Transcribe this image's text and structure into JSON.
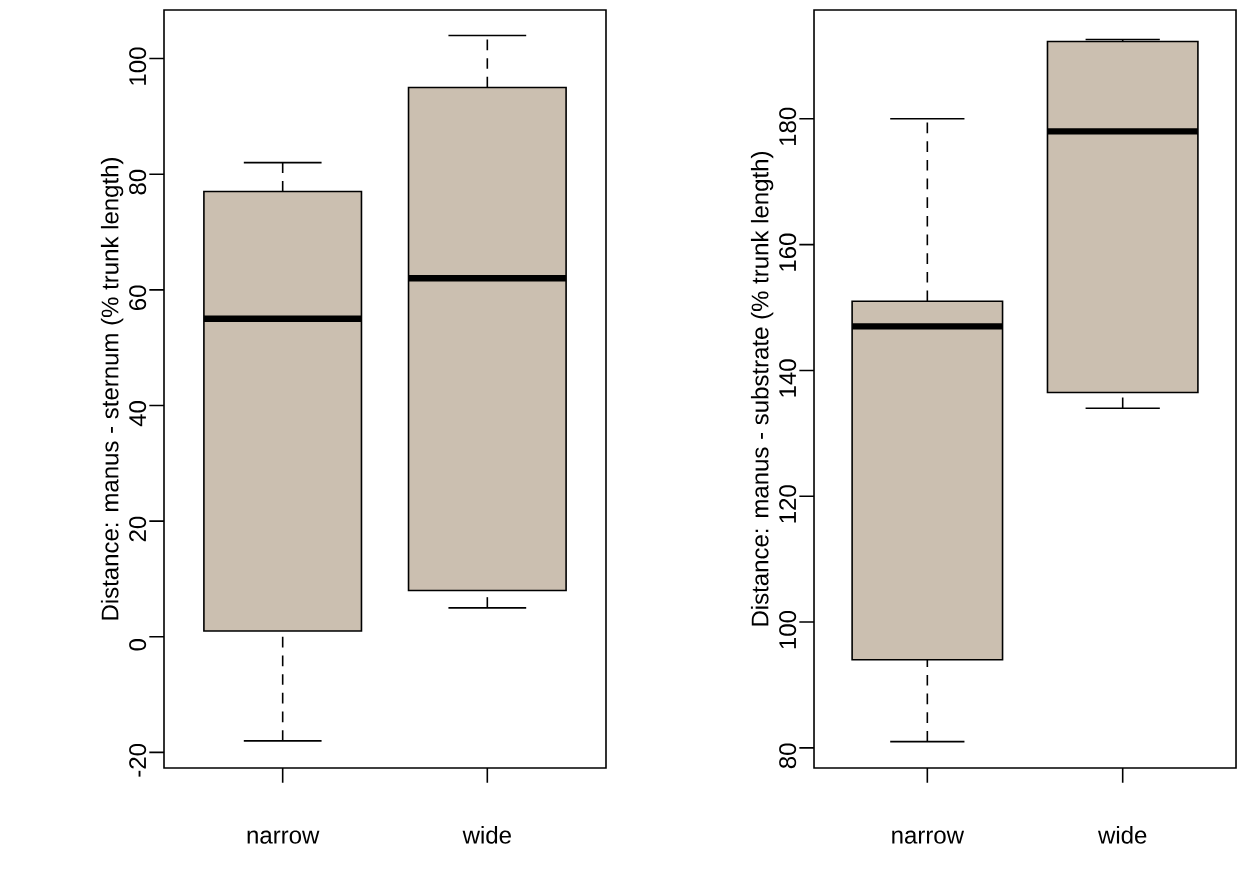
{
  "chart_data": [
    {
      "type": "box",
      "ylabel": "Distance: manus - sternum (% trunk length)",
      "categories": [
        "narrow",
        "wide"
      ],
      "series": [
        {
          "color": "#cbbfb0",
          "boxes": [
            {
              "low": -18,
              "q1": 1,
              "median": 55,
              "q3": 77,
              "high": 82
            },
            {
              "low": 5,
              "q1": 8,
              "median": 62,
              "q3": 95,
              "high": 104
            }
          ]
        }
      ],
      "ylim": [
        -22.7,
        108.4
      ],
      "yticks": [
        -20,
        0,
        20,
        40,
        60,
        80,
        100
      ]
    },
    {
      "type": "box",
      "ylabel": "Distance: manus - substrate (% trunk length)",
      "categories": [
        "narrow",
        "wide"
      ],
      "series": [
        {
          "color": "#cbbfb0",
          "boxes": [
            {
              "low": 81,
              "q1": 94,
              "median": 147,
              "q3": 151,
              "high": 180
            },
            {
              "low": 134,
              "q1": 136.5,
              "median": 178,
              "q3": 192.3,
              "high": 192.6
            }
          ]
        }
      ],
      "ylim": [
        76.8,
        197.3
      ],
      "yticks": [
        80,
        100,
        120,
        140,
        160,
        180
      ]
    }
  ]
}
